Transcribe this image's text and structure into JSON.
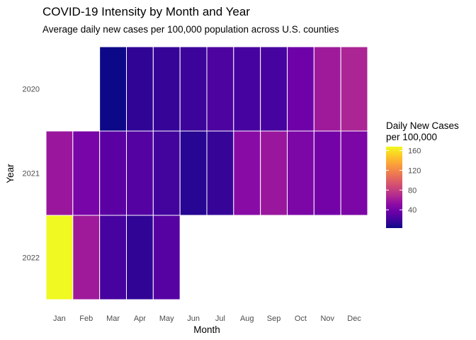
{
  "chart_data": {
    "type": "heatmap",
    "title": "COVID-19 Intensity by Month and Year",
    "subtitle": "Average daily new cases per 100,000 population across U.S. counties",
    "xlabel": "Month",
    "ylabel": "Year",
    "x_categories": [
      "Jan",
      "Feb",
      "Mar",
      "Apr",
      "May",
      "Jun",
      "Jul",
      "Aug",
      "Sep",
      "Oct",
      "Nov",
      "Dec"
    ],
    "y_categories": [
      "2020",
      "2021",
      "2022"
    ],
    "values": {
      "2020": [
        null,
        null,
        3,
        14,
        16,
        18,
        24,
        22,
        22,
        38,
        60,
        66
      ],
      "2021": [
        58,
        42,
        30,
        27,
        20,
        11,
        16,
        50,
        58,
        44,
        40,
        44
      ],
      "2022": [
        168,
        60,
        22,
        14,
        28,
        null,
        null,
        null,
        null,
        null,
        null,
        null
      ]
    },
    "legend": {
      "title_lines": [
        "Daily New Cases",
        "per 100,000"
      ],
      "placement": "right",
      "ticks": [
        40,
        80,
        120,
        160
      ],
      "min": 3,
      "max": 168,
      "colormap": "plasma"
    },
    "grid": false
  }
}
